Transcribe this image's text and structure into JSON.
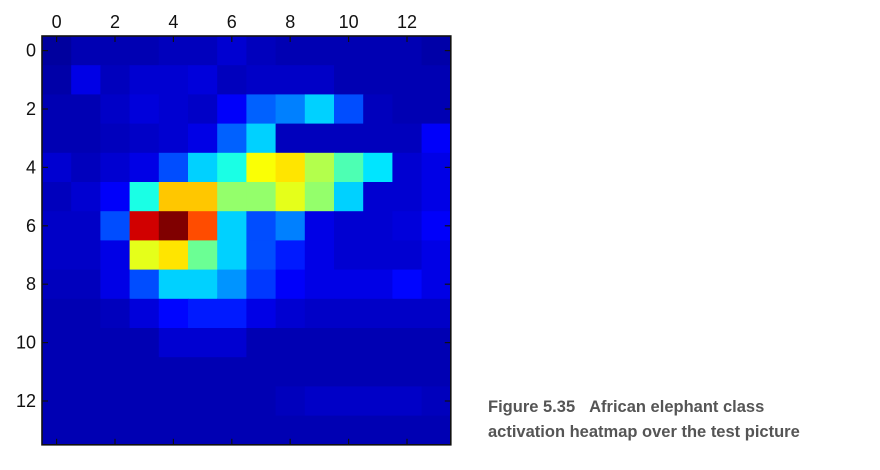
{
  "chart_data": {
    "type": "heatmap",
    "title": "",
    "xlabel": "",
    "ylabel": "",
    "x_tick_labels": [
      "0",
      "2",
      "4",
      "6",
      "8",
      "10",
      "12"
    ],
    "y_tick_labels": [
      "0",
      "2",
      "4",
      "6",
      "8",
      "10",
      "12"
    ],
    "x_ticks": [
      0,
      2,
      4,
      6,
      8,
      10,
      12
    ],
    "y_ticks": [
      0,
      2,
      4,
      6,
      8,
      10,
      12
    ],
    "xlim": [
      -0.5,
      13.5
    ],
    "ylim": [
      13.5,
      -0.5
    ],
    "x_axis_position": "top",
    "colormap": "jet",
    "grid": false,
    "legend": "none",
    "rows": 14,
    "cols": 14,
    "values": [
      [
        0.03,
        0.05,
        0.05,
        0.05,
        0.06,
        0.06,
        0.08,
        0.06,
        0.05,
        0.05,
        0.05,
        0.05,
        0.05,
        0.04
      ],
      [
        0.04,
        0.1,
        0.06,
        0.08,
        0.08,
        0.09,
        0.06,
        0.07,
        0.07,
        0.07,
        0.05,
        0.05,
        0.05,
        0.05
      ],
      [
        0.05,
        0.05,
        0.07,
        0.09,
        0.08,
        0.07,
        0.12,
        0.22,
        0.25,
        0.33,
        0.2,
        0.06,
        0.05,
        0.05
      ],
      [
        0.05,
        0.05,
        0.06,
        0.07,
        0.08,
        0.1,
        0.22,
        0.33,
        0.06,
        0.06,
        0.06,
        0.06,
        0.06,
        0.12
      ],
      [
        0.08,
        0.06,
        0.08,
        0.1,
        0.2,
        0.33,
        0.4,
        0.62,
        0.65,
        0.55,
        0.45,
        0.35,
        0.08,
        0.1
      ],
      [
        0.06,
        0.08,
        0.12,
        0.4,
        0.68,
        0.68,
        0.52,
        0.52,
        0.6,
        0.52,
        0.33,
        0.08,
        0.08,
        0.1
      ],
      [
        0.07,
        0.07,
        0.2,
        0.92,
        1.0,
        0.8,
        0.33,
        0.2,
        0.25,
        0.1,
        0.08,
        0.08,
        0.09,
        0.12
      ],
      [
        0.07,
        0.07,
        0.1,
        0.6,
        0.65,
        0.48,
        0.33,
        0.2,
        0.15,
        0.1,
        0.08,
        0.08,
        0.08,
        0.1
      ],
      [
        0.06,
        0.06,
        0.1,
        0.2,
        0.33,
        0.33,
        0.27,
        0.18,
        0.12,
        0.1,
        0.1,
        0.1,
        0.13,
        0.1
      ],
      [
        0.05,
        0.05,
        0.06,
        0.09,
        0.13,
        0.15,
        0.15,
        0.1,
        0.08,
        0.07,
        0.07,
        0.07,
        0.07,
        0.07
      ],
      [
        0.05,
        0.05,
        0.05,
        0.05,
        0.08,
        0.08,
        0.08,
        0.05,
        0.05,
        0.05,
        0.05,
        0.05,
        0.05,
        0.05
      ],
      [
        0.05,
        0.05,
        0.05,
        0.05,
        0.05,
        0.05,
        0.05,
        0.05,
        0.05,
        0.05,
        0.05,
        0.05,
        0.05,
        0.05
      ],
      [
        0.05,
        0.05,
        0.05,
        0.05,
        0.05,
        0.05,
        0.05,
        0.05,
        0.06,
        0.07,
        0.07,
        0.07,
        0.07,
        0.06
      ],
      [
        0.05,
        0.05,
        0.05,
        0.05,
        0.05,
        0.05,
        0.05,
        0.05,
        0.05,
        0.05,
        0.05,
        0.05,
        0.05,
        0.05
      ]
    ]
  },
  "caption": {
    "figure_number": "Figure 5.35",
    "line1": "African elephant class",
    "line2": "activation heatmap over the test picture"
  }
}
